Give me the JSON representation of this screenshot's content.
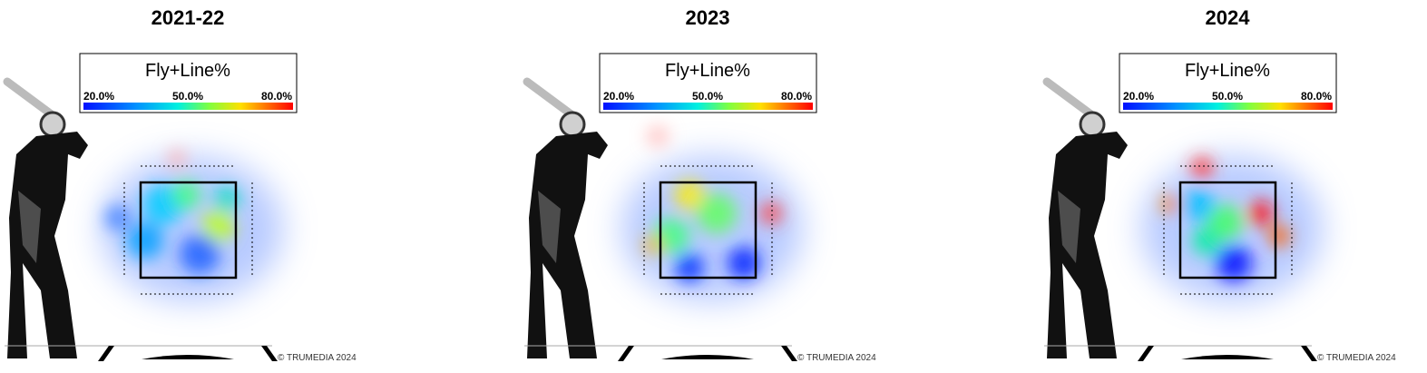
{
  "metric": "Fly+Line%",
  "legend_ticks": [
    "20.0%",
    "50.0%",
    "80.0%"
  ],
  "copyright": "© TRUMEDIA 2024",
  "panels": [
    {
      "title": "2021-22"
    },
    {
      "title": "2023"
    },
    {
      "title": "2024"
    }
  ]
}
